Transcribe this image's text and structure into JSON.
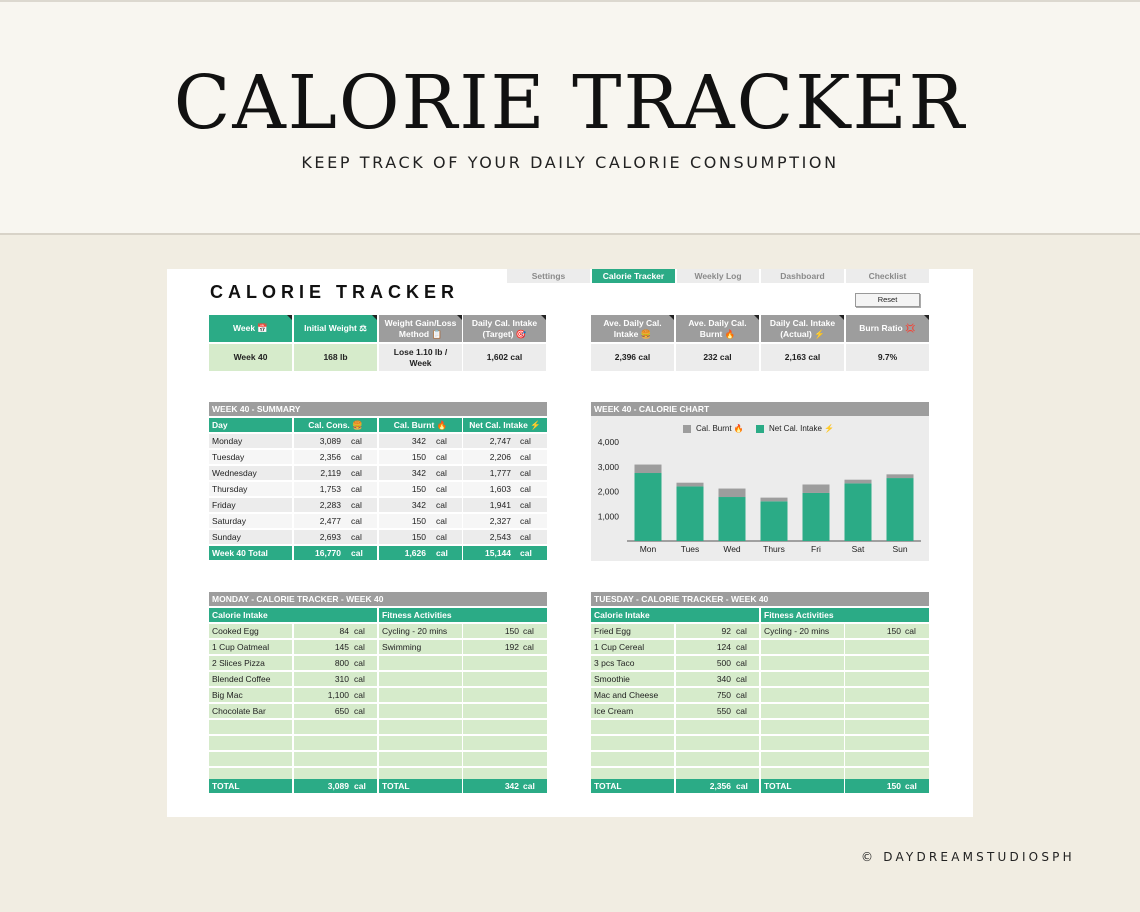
{
  "banner": {
    "title": "CALORIE TRACKER",
    "subtitle": "KEEP TRACK OF YOUR DAILY CALORIE CONSUMPTION"
  },
  "credit": "© DAYDREAMSTUDIOSPH",
  "tabs": [
    "Settings",
    "Calorie Tracker",
    "Weekly Log",
    "Dashboard",
    "Checklist"
  ],
  "sheet_title": "CALORIE TRACKER",
  "reset_label": "Reset",
  "stats_left": [
    {
      "label": "Week 📅",
      "value": "Week 40"
    },
    {
      "label": "Initial Weight ⚖",
      "value": "168  lb"
    },
    {
      "label": "Weight Gain/Loss Method 📋",
      "value": "Lose 1.10 lb / Week"
    },
    {
      "label": "Daily Cal. Intake (Target) 🎯",
      "value": "1,602 cal"
    }
  ],
  "stats_right": [
    {
      "label": "Ave. Daily Cal. Intake 🍔",
      "value": "2,396 cal"
    },
    {
      "label": "Ave. Daily Cal. Burnt 🔥",
      "value": "232 cal"
    },
    {
      "label": "Daily Cal. Intake (Actual) ⚡",
      "value": "2,163 cal"
    },
    {
      "label": "Burn Ratio 💢",
      "value": "9.7%"
    }
  ],
  "summary": {
    "title": "WEEK 40 - SUMMARY",
    "headers": [
      "Day",
      "Cal. Cons. 🍔",
      "Cal. Burnt 🔥",
      "Net Cal. Intake ⚡"
    ],
    "rows": [
      [
        "Monday",
        "3,089",
        "342",
        "2,747"
      ],
      [
        "Tuesday",
        "2,356",
        "150",
        "2,206"
      ],
      [
        "Wednesday",
        "2,119",
        "342",
        "1,777"
      ],
      [
        "Thursday",
        "1,753",
        "150",
        "1,603"
      ],
      [
        "Friday",
        "2,283",
        "342",
        "1,941"
      ],
      [
        "Saturday",
        "2,477",
        "150",
        "2,327"
      ],
      [
        "Sunday",
        "2,693",
        "150",
        "2,543"
      ]
    ],
    "total": [
      "Week 40 Total",
      "16,770",
      "1,626",
      "15,144"
    ],
    "unit": "cal"
  },
  "chart_title": "WEEK 40 - CALORIE CHART",
  "chart_data": {
    "type": "bar",
    "stacked": true,
    "categories": [
      "Mon",
      "Tues",
      "Wed",
      "Thurs",
      "Fri",
      "Sat",
      "Sun"
    ],
    "series": [
      {
        "name": "Net Cal. Intake ⚡",
        "values": [
          2747,
          2206,
          1777,
          1603,
          1941,
          2327,
          2543
        ],
        "color": "#2bab86"
      },
      {
        "name": "Cal. Burnt 🔥",
        "values": [
          342,
          150,
          342,
          150,
          342,
          150,
          150
        ],
        "color": "#9d9d9d"
      }
    ],
    "legend": [
      "Cal. Burnt 🔥",
      "Net Cal. Intake ⚡"
    ],
    "legend_position": "top",
    "yticks": [
      "1,000",
      "2,000",
      "3,000",
      "4,000"
    ],
    "ylim": [
      0,
      4000
    ],
    "grid": false
  },
  "monday": {
    "title": "MONDAY - CALORIE TRACKER - WEEK 40",
    "intake_header": "Calorie Intake",
    "fitness_header": "Fitness Activities",
    "intake": [
      [
        "Cooked Egg",
        "84"
      ],
      [
        "1 Cup Oatmeal",
        "145"
      ],
      [
        "2 Slices Pizza",
        "800"
      ],
      [
        "Blended Coffee",
        "310"
      ],
      [
        "Big Mac",
        "1,100"
      ],
      [
        "Chocolate Bar",
        "650"
      ]
    ],
    "fitness": [
      [
        "Cycling - 20 mins",
        "150"
      ],
      [
        "Swimming",
        "192"
      ]
    ],
    "total_label": "TOTAL",
    "intake_total": "3,089",
    "fitness_total": "342"
  },
  "tuesday": {
    "title": "TUESDAY - CALORIE TRACKER - WEEK 40",
    "intake_header": "Calorie Intake",
    "fitness_header": "Fitness Activities",
    "intake": [
      [
        "Fried Egg",
        "92"
      ],
      [
        "1 Cup Cereal",
        "124"
      ],
      [
        "3 pcs Taco",
        "500"
      ],
      [
        "Smoothie",
        "340"
      ],
      [
        "Mac and Cheese",
        "750"
      ],
      [
        "Ice Cream",
        "550"
      ]
    ],
    "fitness": [
      [
        "Cycling - 20 mins",
        "150"
      ]
    ],
    "total_label": "TOTAL",
    "intake_total": "2,356",
    "fitness_total": "150"
  },
  "unit": "cal"
}
